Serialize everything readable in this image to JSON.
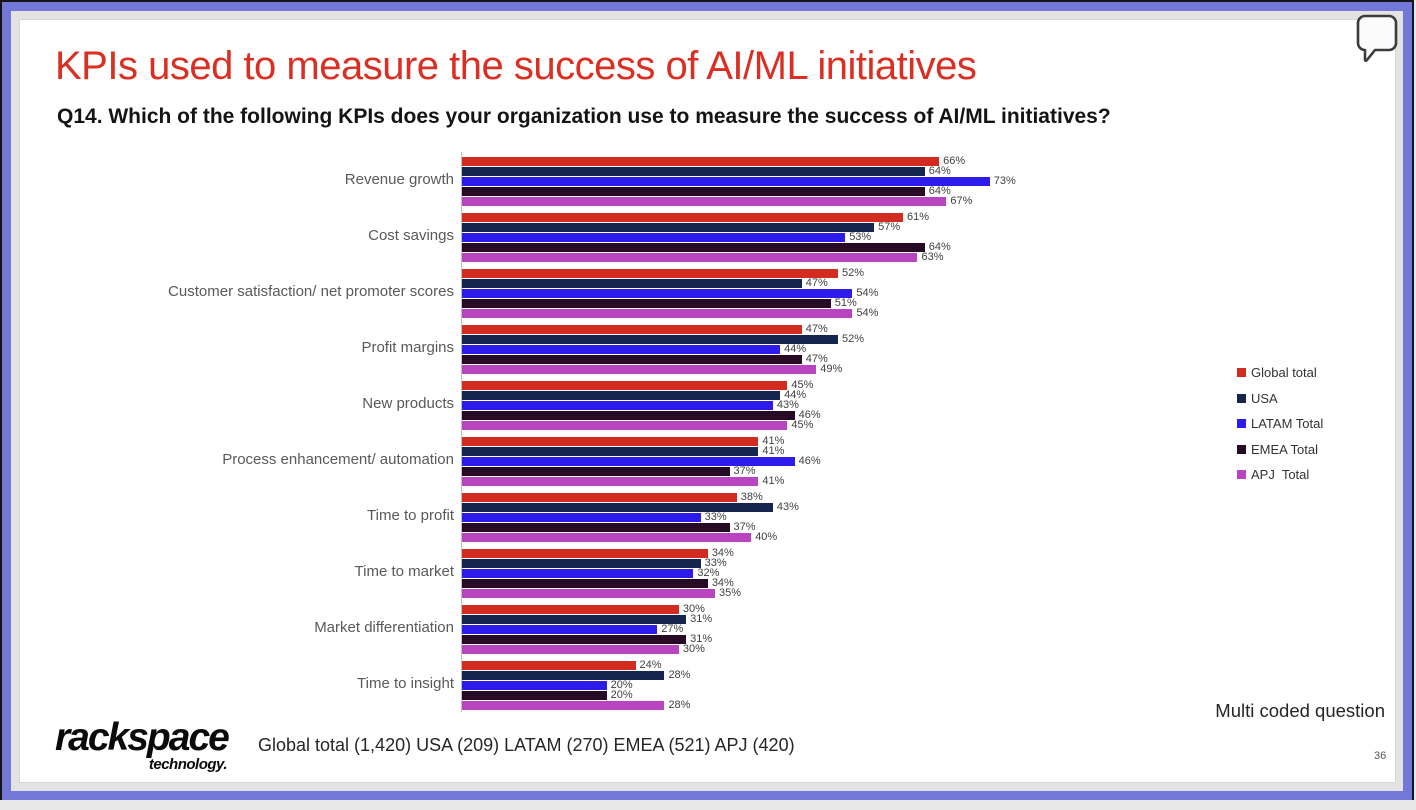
{
  "slide": {
    "title": "KPIs used to measure the success of AI/ML initiatives",
    "question": "Q14. Which of the following KPIs does your organization use to measure the success of AI/ML initiatives?",
    "multi_coded_note": "Multi coded question",
    "base_note": "Global total (1,420) USA (209) LATAM (270) EMEA (521) APJ (420)",
    "page_number": "36",
    "logo": {
      "brand": "rackspace",
      "sub": "technology."
    }
  },
  "icons": {
    "top_right": "comment-speech-bubble-icon"
  },
  "colors": {
    "frame_purple": "#7277d8",
    "title_red": "#da2f23",
    "axis_line": "#bfbfbf",
    "category_label": "#595959",
    "value_label": "#404040"
  },
  "chart_data": {
    "type": "bar",
    "orientation": "horizontal",
    "title": "",
    "xlabel": "",
    "ylabel": "",
    "xlim": [
      0,
      80
    ],
    "grid": false,
    "legend_position": "right",
    "value_suffix": "%",
    "categories": [
      "Revenue growth",
      "Cost savings",
      "Customer satisfaction/ net promoter scores",
      "Profit margins",
      "New products",
      "Process enhancement/ automation",
      "Time to profit",
      "Time to market",
      "Market differentiation",
      "Time to insight"
    ],
    "series": [
      {
        "name": "Global total",
        "color": "#d22b20",
        "values": [
          66,
          61,
          52,
          47,
          45,
          41,
          38,
          34,
          30,
          24
        ]
      },
      {
        "name": "USA",
        "color": "#16254e",
        "values": [
          64,
          57,
          47,
          52,
          44,
          41,
          43,
          33,
          31,
          28
        ]
      },
      {
        "name": "LATAM Total",
        "color": "#2d1bea",
        "values": [
          73,
          53,
          54,
          44,
          43,
          46,
          33,
          32,
          27,
          20
        ]
      },
      {
        "name": "EMEA Total",
        "color": "#260a26",
        "values": [
          64,
          64,
          51,
          47,
          46,
          37,
          37,
          34,
          31,
          20
        ]
      },
      {
        "name": "APJ  Total",
        "color": "#b944c0",
        "values": [
          67,
          63,
          54,
          49,
          45,
          41,
          40,
          35,
          30,
          28
        ]
      }
    ]
  }
}
